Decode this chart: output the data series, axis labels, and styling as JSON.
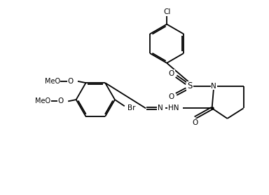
{
  "bg": "#ffffff",
  "lc": "#000000",
  "lw": 1.3,
  "fs": 7.5,
  "figsize": [
    3.84,
    2.78
  ],
  "dpi": 100,
  "xlim": [
    0,
    10
  ],
  "ylim": [
    0,
    7
  ]
}
